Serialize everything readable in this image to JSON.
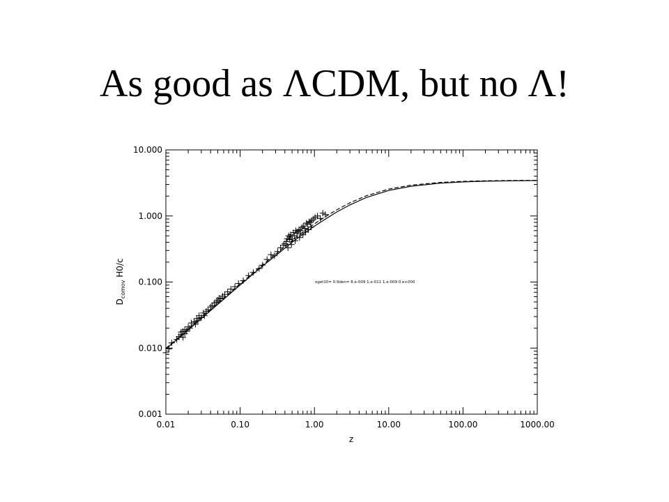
{
  "slide": {
    "title": "As good as ΛCDM, but no Λ!"
  },
  "chart_data": {
    "type": "line",
    "xscale": "log",
    "yscale": "log",
    "xlim": [
      0.01,
      1000
    ],
    "ylim": [
      0.001,
      10
    ],
    "xlabel": "z",
    "ylabel_main": "D",
    "ylabel_sub": "comov",
    "ylabel_rest": " H0/c",
    "xticks": [
      "0.01",
      "0.10",
      "1.00",
      "10.00",
      "100.00",
      "1000.00"
    ],
    "yticks": [
      "0.001",
      "0.010",
      "0.100",
      "1.000",
      "10.000"
    ],
    "annotation": "oget10= 0.9den= 8.e-009 1.e-011 1.e-009 0.e+000",
    "series": [
      {
        "style": "solid",
        "x": [
          0.01,
          0.02,
          0.03,
          0.05,
          0.1,
          0.2,
          0.3,
          0.5,
          0.7,
          1.0,
          1.5,
          2.0,
          3.0,
          5.0,
          10.0,
          20.0,
          50.0,
          100.0,
          200.0,
          500.0,
          1000.0
        ],
        "y": [
          0.0097,
          0.0188,
          0.028,
          0.046,
          0.09,
          0.174,
          0.25,
          0.4,
          0.53,
          0.7,
          0.94,
          1.15,
          1.47,
          1.9,
          2.43,
          2.82,
          3.14,
          3.28,
          3.36,
          3.41,
          3.43
        ]
      },
      {
        "style": "dashed",
        "x": [
          0.01,
          0.02,
          0.03,
          0.05,
          0.1,
          0.2,
          0.3,
          0.5,
          0.7,
          1.0,
          1.5,
          2.0,
          3.0,
          5.0,
          10.0,
          20.0,
          50.0,
          100.0,
          200.0,
          500.0,
          1000.0
        ],
        "y": [
          0.0099,
          0.0196,
          0.0293,
          0.048,
          0.094,
          0.182,
          0.263,
          0.425,
          0.57,
          0.76,
          1.02,
          1.24,
          1.58,
          2.02,
          2.55,
          2.93,
          3.22,
          3.34,
          3.41,
          3.45,
          3.46
        ]
      }
    ],
    "points": {
      "marker": "+",
      "x": [
        0.01,
        0.011,
        0.012,
        0.014,
        0.015,
        0.016,
        0.016,
        0.017,
        0.017,
        0.018,
        0.018,
        0.019,
        0.02,
        0.021,
        0.022,
        0.024,
        0.025,
        0.026,
        0.027,
        0.028,
        0.03,
        0.032,
        0.033,
        0.035,
        0.037,
        0.04,
        0.042,
        0.045,
        0.048,
        0.05,
        0.052,
        0.055,
        0.058,
        0.062,
        0.068,
        0.075,
        0.085,
        0.095,
        0.11,
        0.13,
        0.15,
        0.18,
        0.2,
        0.23,
        0.26,
        0.29,
        0.32,
        0.35,
        0.38,
        0.4,
        0.42,
        0.43,
        0.45,
        0.46,
        0.47,
        0.48,
        0.5,
        0.52,
        0.54,
        0.56,
        0.58,
        0.6,
        0.62,
        0.65,
        0.68,
        0.71,
        0.74,
        0.78,
        0.81,
        0.85,
        0.88,
        0.92,
        0.97,
        1.02,
        1.1,
        1.2,
        1.3,
        1.4,
        0.44,
        0.49,
        0.55,
        0.63,
        0.7,
        0.76,
        0.83,
        0.9
      ],
      "y": [
        0.0085,
        0.0097,
        0.012,
        0.0135,
        0.015,
        0.016,
        0.0175,
        0.0145,
        0.018,
        0.0165,
        0.019,
        0.018,
        0.021,
        0.02,
        0.024,
        0.025,
        0.023,
        0.028,
        0.026,
        0.031,
        0.029,
        0.034,
        0.031,
        0.036,
        0.038,
        0.042,
        0.044,
        0.048,
        0.05,
        0.053,
        0.057,
        0.056,
        0.061,
        0.065,
        0.071,
        0.078,
        0.085,
        0.095,
        0.105,
        0.125,
        0.14,
        0.16,
        0.18,
        0.22,
        0.26,
        0.25,
        0.29,
        0.33,
        0.36,
        0.38,
        0.41,
        0.45,
        0.5,
        0.44,
        0.48,
        0.52,
        0.45,
        0.56,
        0.5,
        0.6,
        0.55,
        0.58,
        0.62,
        0.6,
        0.67,
        0.7,
        0.65,
        0.78,
        0.75,
        0.82,
        0.8,
        0.85,
        0.9,
        0.95,
        1.0,
        0.92,
        1.1,
        1.05,
        0.33,
        0.37,
        0.42,
        0.47,
        0.52,
        0.57,
        0.62,
        0.68
      ]
    }
  }
}
